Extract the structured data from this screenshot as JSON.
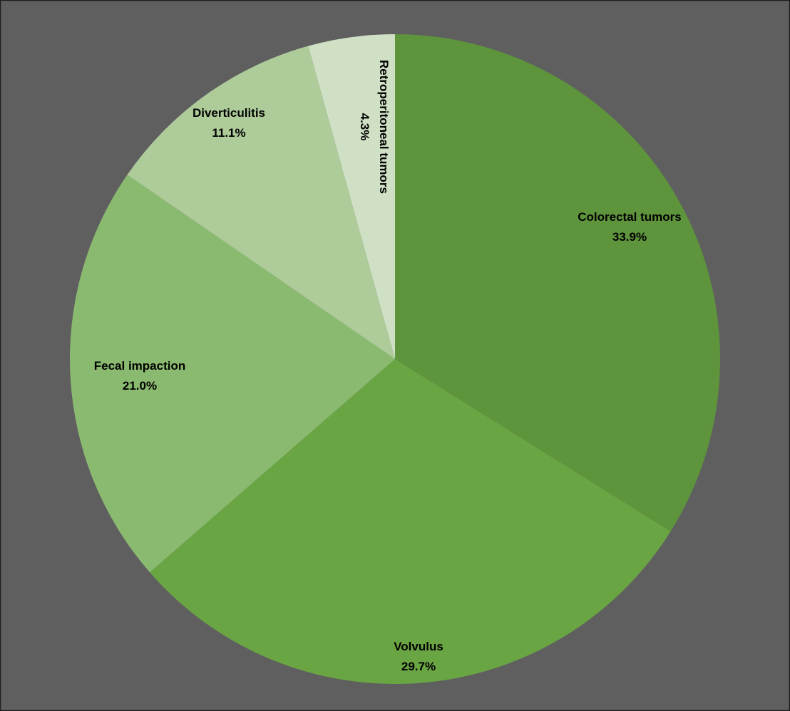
{
  "chart_data": {
    "type": "pie",
    "title": "",
    "slices": [
      {
        "label": "Colorectal tumors",
        "value": 33.9,
        "value_label": "33.9%",
        "color": "#5e943c"
      },
      {
        "label": "Volvulus",
        "value": 29.7,
        "value_label": "29.7%",
        "color": "#6aa543"
      },
      {
        "label": "Fecal impaction",
        "value": 21.0,
        "value_label": "21.0%",
        "color": "#8aba6f"
      },
      {
        "label": "Diverticulitis",
        "value": 11.1,
        "value_label": "11.1%",
        "color": "#aecb9a"
      },
      {
        "label": "Retroperitoneal tumors",
        "value": 4.3,
        "value_label": "4.3%",
        "color": "#cfe0c4"
      }
    ],
    "start_angle": "12 o'clock",
    "direction": "clockwise",
    "legend": "none",
    "data_labels": "category name and percentage on each slice"
  },
  "colors": {
    "background": "#5f5f5f",
    "border": "#1e1e1e",
    "label_text": "#000000"
  }
}
